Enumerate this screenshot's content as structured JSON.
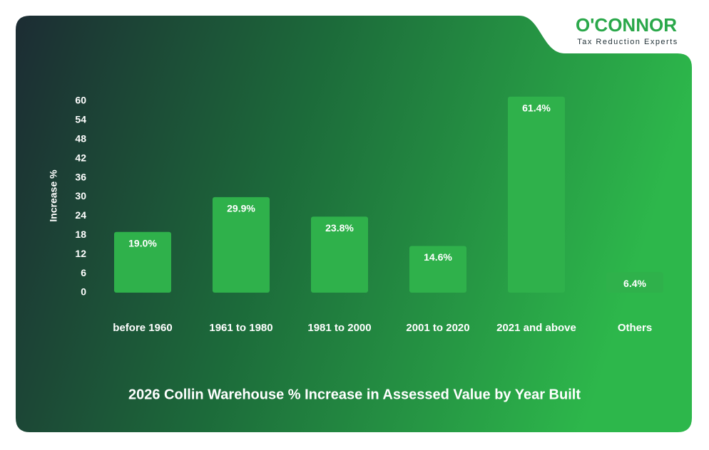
{
  "brand": {
    "name": "O'CONNOR",
    "tagline": "Tax Reduction Experts"
  },
  "chart_data": {
    "type": "bar",
    "title": "2026 Collin Warehouse % Increase in Assessed Value by Year Built",
    "y_label": "Increase %",
    "categories": [
      "before 1960",
      "1961 to 1980",
      "1981 to 2000",
      "2001 to 2020",
      "2021 and above",
      "Others"
    ],
    "values": [
      19.0,
      29.9,
      23.8,
      14.6,
      61.4,
      6.4
    ],
    "value_labels": [
      "19.0%",
      "29.9%",
      "23.8%",
      "14.6%",
      "61.4%",
      "6.4%"
    ],
    "color": "#2fb14b",
    "ylim": [
      0,
      62
    ],
    "yticks": [
      0,
      6,
      12,
      18,
      24,
      30,
      36,
      42,
      48,
      54,
      60
    ],
    "grid": false
  }
}
